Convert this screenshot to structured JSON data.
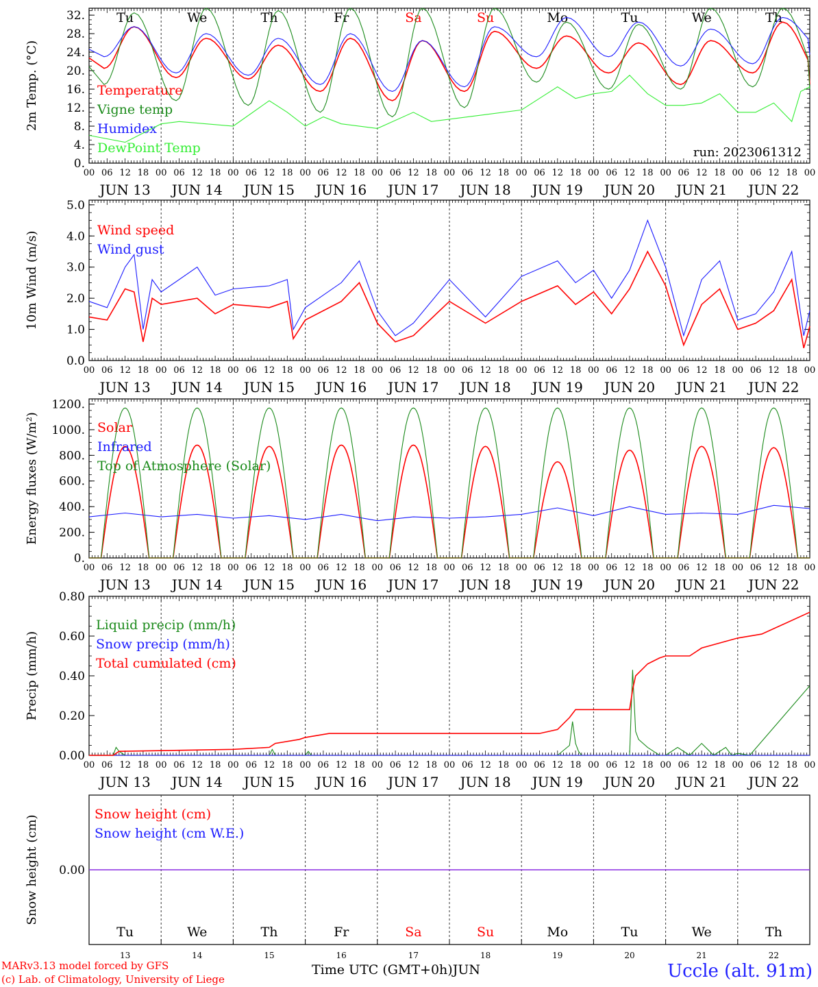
{
  "colors": {
    "red": "#ff0000",
    "dark_green": "#1a8a1a",
    "blue": "#1a1aff",
    "light_green": "#33ee33",
    "purple": "#8a2be2",
    "grid_dash": "#333333"
  },
  "x_axis": {
    "hour_ticks": [
      "00",
      "06",
      "12",
      "18"
    ],
    "final_tick": "00",
    "dates": [
      "JUN 13",
      "JUN 14",
      "JUN 15",
      "JUN 16",
      "JUN 17",
      "JUN 18",
      "JUN 19",
      "JUN 20",
      "JUN 21",
      "JUN 22"
    ],
    "weekdays": [
      "Tu",
      "We",
      "Th",
      "Fr",
      "Sa",
      "Su",
      "Mo",
      "Tu",
      "We",
      "Th"
    ],
    "weekend_flags": [
      false,
      false,
      false,
      false,
      true,
      true,
      false,
      false,
      false,
      false
    ],
    "day_numbers": [
      "13",
      "14",
      "15",
      "16",
      "17",
      "18",
      "19",
      "20",
      "21",
      "22"
    ]
  },
  "footer": {
    "credit_line1": "MARv3.13 model forced by GFS",
    "credit_line2": "(c) Lab. of Climatology, University of Liege",
    "axis_title": "Time UTC (GMT+0h)",
    "month": "JUN",
    "station": "Uccle (alt. 91m)"
  },
  "chart_data": [
    {
      "type": "line",
      "id": "temperature",
      "ylabel": "2m Temp. (°C)",
      "ylim": [
        0,
        33.5
      ],
      "yticks": [
        0,
        4,
        8,
        12,
        16,
        20,
        24,
        28,
        32
      ],
      "ytick_labels": [
        "0.",
        "4.",
        "8.",
        "12.",
        "16.",
        "20.",
        "24.",
        "28.",
        "32."
      ],
      "annotation": "run: 2023061312",
      "x_unit": "hours since JUN 13 00 UTC",
      "series": [
        {
          "name": "Temperature",
          "color": "red",
          "kind": "diurnal",
          "min": [
            20.5,
            18.5,
            18.2,
            15.5,
            13.5,
            15.5,
            20.5,
            19.5,
            17.0,
            19.5,
            18.0
          ],
          "max": [
            29.5,
            27.0,
            25.5,
            27.0,
            26.5,
            28.5,
            27.5,
            26.0,
            26.5,
            30.5
          ]
        },
        {
          "name": "Vigne temp",
          "color": "dark_green",
          "kind": "diurnal",
          "min": [
            17.0,
            13.5,
            12.5,
            11.0,
            10.0,
            12.0,
            17.5,
            16.0,
            16.0,
            16.5,
            17.0
          ],
          "max": [
            32.5,
            33.5,
            33.0,
            33.5,
            33.5,
            33.5,
            30.5,
            30.0,
            33.5,
            33.5
          ]
        },
        {
          "name": "Humidex",
          "color": "blue",
          "kind": "diurnal",
          "min": [
            23.0,
            19.5,
            19.0,
            17.0,
            15.5,
            16.5,
            23.0,
            23.0,
            21.0,
            21.5,
            24.5
          ],
          "max": [
            29.5,
            28.0,
            27.0,
            28.0,
            26.5,
            29.5,
            31.5,
            30.5,
            29.0,
            31.5
          ]
        },
        {
          "name": "DewPoint Temp",
          "color": "light_green",
          "kind": "points",
          "x": [
            0,
            12,
            24,
            30,
            48,
            60,
            66,
            72,
            78,
            84,
            96,
            108,
            114,
            120,
            132,
            144,
            156,
            162,
            168,
            174,
            180,
            186,
            192,
            198,
            204,
            210,
            216,
            222,
            228,
            234,
            237,
            240
          ],
          "y": [
            6.0,
            4.5,
            8.5,
            9.0,
            8.0,
            13.5,
            11.0,
            8.0,
            10.0,
            8.5,
            7.5,
            11.0,
            9.0,
            9.5,
            10.5,
            11.5,
            16.5,
            14.0,
            15.0,
            15.5,
            19.0,
            15.0,
            12.5,
            12.5,
            13.0,
            15.0,
            11.0,
            11.0,
            13.0,
            9.0,
            15.5,
            16.5
          ]
        }
      ]
    },
    {
      "type": "line",
      "id": "wind",
      "ylabel": "10m Wind (m/s)",
      "ylim": [
        0,
        5.15
      ],
      "yticks": [
        0,
        1,
        2,
        3,
        4,
        5
      ],
      "ytick_labels": [
        "0.0",
        "1.0",
        "2.0",
        "3.0",
        "4.0",
        "5.0"
      ],
      "series": [
        {
          "name": "Wind speed",
          "color": "red",
          "kind": "points",
          "x": [
            0,
            6,
            12,
            15,
            18,
            21,
            24,
            36,
            42,
            48,
            60,
            66,
            68,
            72,
            84,
            90,
            96,
            102,
            108,
            120,
            132,
            144,
            156,
            162,
            168,
            174,
            180,
            186,
            192,
            198,
            204,
            210,
            216,
            222,
            228,
            234,
            238,
            240
          ],
          "y": [
            1.4,
            1.3,
            2.3,
            2.2,
            0.6,
            2.0,
            1.8,
            2.0,
            1.5,
            1.8,
            1.7,
            1.9,
            0.7,
            1.3,
            1.9,
            2.5,
            1.2,
            0.6,
            0.8,
            1.9,
            1.2,
            1.9,
            2.4,
            1.8,
            2.2,
            1.5,
            2.3,
            3.5,
            2.4,
            0.5,
            1.8,
            2.3,
            1.0,
            1.2,
            1.6,
            2.6,
            0.4,
            1.1
          ]
        },
        {
          "name": "Wind gust",
          "color": "blue",
          "kind": "points",
          "x": [
            0,
            6,
            12,
            15,
            18,
            21,
            24,
            36,
            42,
            48,
            60,
            66,
            68,
            72,
            84,
            90,
            96,
            102,
            108,
            120,
            132,
            144,
            156,
            162,
            168,
            174,
            180,
            186,
            192,
            198,
            204,
            210,
            216,
            222,
            228,
            234,
            238,
            240
          ],
          "y": [
            1.9,
            1.7,
            3.0,
            3.4,
            1.0,
            2.6,
            2.2,
            3.0,
            2.1,
            2.3,
            2.4,
            2.6,
            1.0,
            1.7,
            2.5,
            3.2,
            1.6,
            0.8,
            1.2,
            2.6,
            1.4,
            2.7,
            3.2,
            2.5,
            2.9,
            2.0,
            2.9,
            4.5,
            3.0,
            0.8,
            2.6,
            3.2,
            1.3,
            1.5,
            2.2,
            3.5,
            0.8,
            1.6
          ]
        }
      ]
    },
    {
      "type": "line",
      "id": "energy",
      "ylabel": "Energy fluxes (W/m²)",
      "ylim": [
        0,
        1240
      ],
      "yticks": [
        0,
        200,
        400,
        600,
        800,
        1000,
        1200
      ],
      "ytick_labels": [
        "0.",
        "200.",
        "400.",
        "600.",
        "800.",
        "1000.",
        "1200."
      ],
      "series": [
        {
          "name": "Solar",
          "color": "red",
          "kind": "daily",
          "sunrise": 4,
          "sunset": 20,
          "peaks": [
            870,
            880,
            870,
            880,
            880,
            870,
            750,
            840,
            870,
            860
          ]
        },
        {
          "name": "Infrared",
          "color": "blue",
          "kind": "points",
          "x": [
            0,
            12,
            24,
            36,
            48,
            60,
            72,
            84,
            96,
            108,
            120,
            132,
            144,
            156,
            168,
            180,
            192,
            204,
            216,
            228,
            240
          ],
          "y": [
            320,
            350,
            320,
            340,
            310,
            330,
            300,
            340,
            290,
            320,
            310,
            320,
            340,
            390,
            330,
            400,
            340,
            350,
            340,
            410,
            385
          ]
        },
        {
          "name": "Top of Atmosphere (Solar)",
          "color": "dark_green",
          "kind": "daily",
          "sunrise": 4,
          "sunset": 20,
          "peaks": [
            1170,
            1170,
            1170,
            1170,
            1170,
            1170,
            1170,
            1170,
            1170,
            1170
          ]
        }
      ]
    },
    {
      "type": "line",
      "id": "precip",
      "ylabel": "Precip (mm/h)",
      "ylim": [
        0,
        0.8
      ],
      "yticks": [
        0,
        0.2,
        0.4,
        0.6,
        0.8
      ],
      "ytick_labels": [
        "0.00",
        "0.20",
        "0.40",
        "0.60",
        "0.80"
      ],
      "series": [
        {
          "name": "Liquid precip (mm/h)",
          "color": "dark_green",
          "kind": "points",
          "x": [
            0,
            8,
            9,
            10,
            11,
            12,
            60,
            61,
            62,
            72,
            73,
            74,
            156,
            160,
            161,
            162,
            163,
            164,
            180,
            181,
            182,
            183,
            186,
            190,
            192,
            196,
            200,
            204,
            206,
            208,
            212,
            214,
            216,
            220,
            240
          ],
          "y": [
            0,
            0,
            0.04,
            0.02,
            0.01,
            0,
            0,
            0.03,
            0,
            0,
            0.02,
            0,
            0,
            0.05,
            0.17,
            0.06,
            0.02,
            0,
            0,
            0.43,
            0.12,
            0.08,
            0.04,
            0,
            0,
            0.04,
            0,
            0.06,
            0.03,
            0,
            0.04,
            0,
            0.01,
            0,
            0.35
          ]
        },
        {
          "name": "Snow precip (mm/h)",
          "color": "blue",
          "kind": "points",
          "x": [
            0,
            240
          ],
          "y": [
            0,
            0
          ]
        },
        {
          "name": "Total cumulated (cm)",
          "color": "red",
          "kind": "points",
          "x": [
            0,
            8,
            10,
            48,
            60,
            62,
            70,
            72,
            80,
            96,
            120,
            144,
            150,
            156,
            160,
            162,
            172,
            180,
            181,
            182,
            186,
            190,
            192,
            200,
            204,
            216,
            224,
            240
          ],
          "y": [
            0,
            0,
            0.02,
            0.03,
            0.04,
            0.06,
            0.08,
            0.09,
            0.11,
            0.11,
            0.11,
            0.11,
            0.11,
            0.13,
            0.19,
            0.23,
            0.23,
            0.23,
            0.33,
            0.4,
            0.46,
            0.49,
            0.5,
            0.5,
            0.54,
            0.59,
            0.61,
            0.72
          ]
        }
      ]
    },
    {
      "type": "line",
      "id": "snow",
      "ylabel": "Snow height (cm)",
      "ylim": [
        -1,
        1
      ],
      "yticks": [
        0
      ],
      "ytick_labels": [
        "0.00"
      ],
      "series": [
        {
          "name": "Snow height (cm)",
          "color": "red",
          "kind": "points",
          "x": [
            0,
            240
          ],
          "y": [
            0,
            0
          ]
        },
        {
          "name": "Snow height (cm W.E.)",
          "color": "blue",
          "kind": "points",
          "x": [
            0,
            240
          ],
          "y": [
            0,
            0
          ]
        }
      ]
    }
  ]
}
